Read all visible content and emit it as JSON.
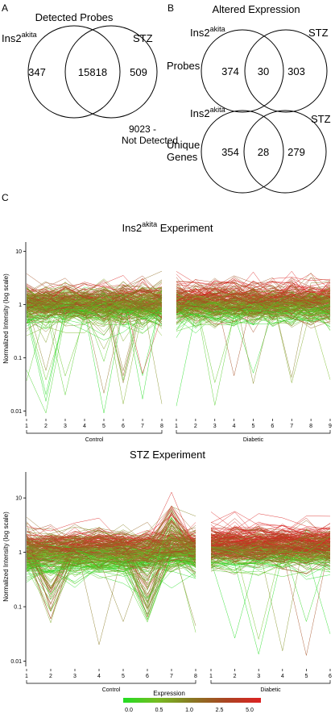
{
  "panel_a": {
    "letter": "A",
    "title": "Detected Probes",
    "left_label": "Ins2",
    "left_label_sup": "akita",
    "right_label": "STZ",
    "left_only": "347",
    "overlap": "15818",
    "right_only": "509",
    "outside_line1": "9023 -",
    "outside_line2": "Not Detected"
  },
  "panel_b": {
    "letter": "B",
    "title": "Altered Expression",
    "probes": {
      "row_label": "Probes",
      "left_label": "Ins2",
      "left_label_sup": "akita",
      "right_label": "STZ",
      "left_only": "374",
      "overlap": "30",
      "right_only": "303"
    },
    "genes": {
      "row_label_line1": "Unique",
      "row_label_line2": "Genes",
      "left_label": "Ins2",
      "left_label_sup": "akita",
      "right_label": "STZ",
      "left_only": "354",
      "overlap": "28",
      "right_only": "279"
    }
  },
  "panel_c": {
    "letter": "C",
    "legend": {
      "title": "Expression",
      "ticks": [
        "0.0",
        "0.5",
        "1.0",
        "2.5",
        "5.0"
      ],
      "colors": [
        "#22dd22",
        "#77bb22",
        "#887722",
        "#aa4422",
        "#dd2222"
      ]
    }
  },
  "chart_data": [
    {
      "type": "line",
      "title": "Ins2akita Experiment",
      "ylabel": "Normalized Intensity (log scale)",
      "y_scale": "log",
      "ylim": [
        0.008,
        15
      ],
      "y_ticks": [
        "10",
        "1",
        "0.1",
        "0.01"
      ],
      "groups": [
        {
          "name": "Control",
          "x": [
            1,
            2,
            3,
            4,
            5,
            6,
            7,
            8
          ]
        },
        {
          "name": "Diabetic",
          "x": [
            1,
            2,
            3,
            4,
            5,
            6,
            7,
            8,
            9
          ]
        }
      ],
      "description_values": "many probe profiles, mostly 0.5-2, occasional drops to 0.01"
    },
    {
      "type": "line",
      "title": "STZ Experiment",
      "ylabel": "Normalized Intensity (log scale)",
      "y_scale": "log",
      "ylim": [
        0.008,
        30
      ],
      "y_ticks": [
        "10",
        "1",
        "0.1",
        "0.01"
      ],
      "groups": [
        {
          "name": "Control",
          "x": [
            1,
            2,
            3,
            4,
            5,
            6,
            7,
            8
          ]
        },
        {
          "name": "Diabetic",
          "x": [
            1,
            2,
            3,
            4,
            5,
            6
          ]
        }
      ],
      "description_values": "many probe profiles, mostly 0.5-2, dips at control 2 and 6"
    }
  ]
}
